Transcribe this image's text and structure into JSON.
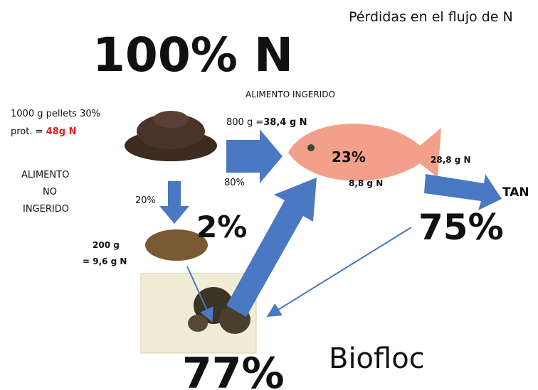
{
  "title": "Pérdidas en el flujo de N",
  "headline": "100% N",
  "feed": {
    "line1": "1000 g pellets 30%",
    "line2_prefix": "prot. = ",
    "line2_value": "48g N"
  },
  "ingested": {
    "label": "ALIMENTO INGERIDO",
    "amount_prefix": "800 g =",
    "amount_value": "38,4 g N",
    "percent": "80%"
  },
  "not_ingested": {
    "lines": [
      "ALIMENTO",
      "NO",
      "INGERIDO"
    ],
    "percent": "20%",
    "loss": "2%",
    "amount": "200 g",
    "amount_n": "= 9,6 g N"
  },
  "fish": {
    "retained": "23%",
    "retained_n": "8,8 g N",
    "excreted_n": "28,8 g N",
    "tan": "TAN",
    "tan_percent": "75%"
  },
  "biofloc": {
    "label": "Biofloc",
    "percent": "77%"
  }
}
